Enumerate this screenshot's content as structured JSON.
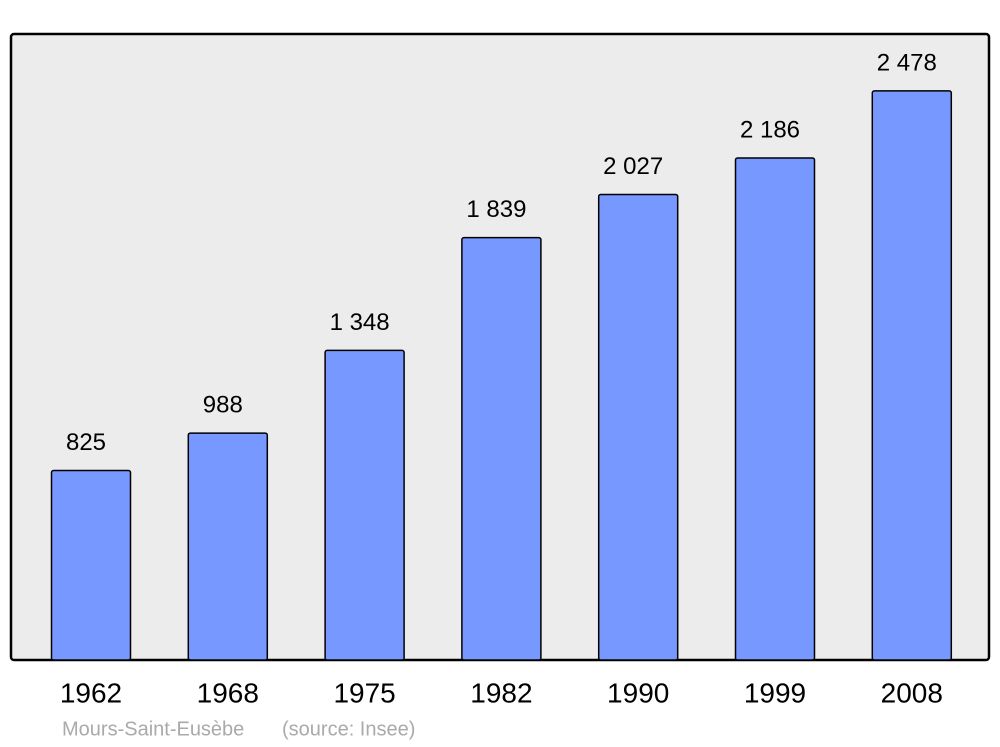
{
  "chart_data": {
    "type": "bar",
    "categories": [
      "1962",
      "1968",
      "1975",
      "1982",
      "1990",
      "1999",
      "2008"
    ],
    "values": [
      825,
      988,
      1348,
      1839,
      2027,
      2186,
      2478
    ],
    "value_labels": [
      "825",
      "988",
      "1 348",
      "1 839",
      "2 027",
      "2 186",
      "2 478"
    ],
    "color": "#7799ff",
    "location": "Mours-Saint-Eusèbe",
    "source": "(source: Insee)"
  }
}
